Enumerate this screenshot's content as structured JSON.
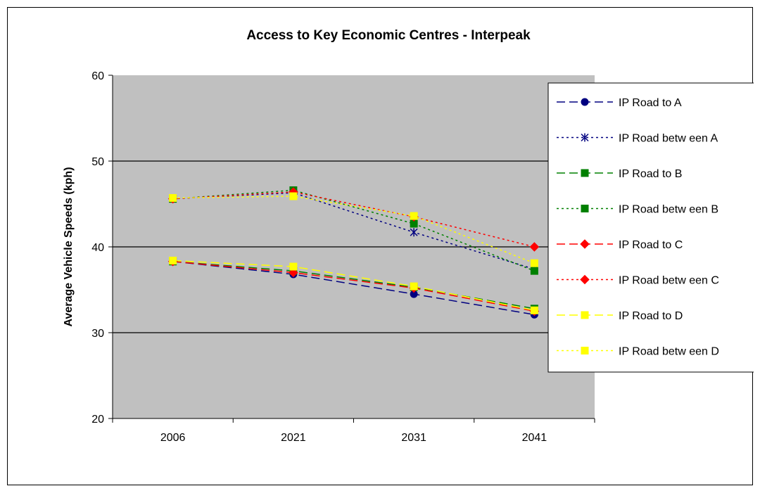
{
  "chart_data": {
    "type": "line",
    "title": "Access to Key Economic Centres - Interpeak",
    "xlabel": "",
    "ylabel": "Average Vehicle Speeds (kph)",
    "categories": [
      "2006",
      "2021",
      "2031",
      "2041"
    ],
    "ylim": [
      20,
      60
    ],
    "yticks": [
      20,
      30,
      40,
      50,
      60
    ],
    "grid": true,
    "plot_background": "#c0c0c0",
    "legend_position": "right",
    "series": [
      {
        "name": "IP Road to A",
        "values": [
          38.3,
          36.8,
          34.5,
          32.1
        ],
        "color": "#000080",
        "dash": "dash",
        "marker": "circle"
      },
      {
        "name": "IP Road betw een A",
        "values": [
          45.6,
          46.3,
          41.7,
          37.4
        ],
        "color": "#000080",
        "dash": "dot",
        "marker": "star"
      },
      {
        "name": "IP Road to B",
        "values": [
          38.3,
          37.2,
          35.3,
          32.8
        ],
        "color": "#008000",
        "dash": "dash",
        "marker": "square"
      },
      {
        "name": "IP Road betw een B",
        "values": [
          45.6,
          46.6,
          42.7,
          37.2
        ],
        "color": "#008000",
        "dash": "dot",
        "marker": "square"
      },
      {
        "name": "IP Road to C",
        "values": [
          38.3,
          37.0,
          35.2,
          32.5
        ],
        "color": "#ff0000",
        "dash": "dash",
        "marker": "diamond"
      },
      {
        "name": "IP Road betw een C",
        "values": [
          45.6,
          46.4,
          43.5,
          40.0
        ],
        "color": "#ff0000",
        "dash": "dot",
        "marker": "diamond"
      },
      {
        "name": "IP Road to D",
        "values": [
          38.4,
          37.7,
          35.4,
          32.6
        ],
        "color": "#ffff00",
        "dash": "dash",
        "marker": "square"
      },
      {
        "name": "IP Road betw een D",
        "values": [
          45.7,
          45.9,
          43.6,
          38.1
        ],
        "color": "#ffff00",
        "dash": "dot",
        "marker": "square"
      }
    ]
  }
}
